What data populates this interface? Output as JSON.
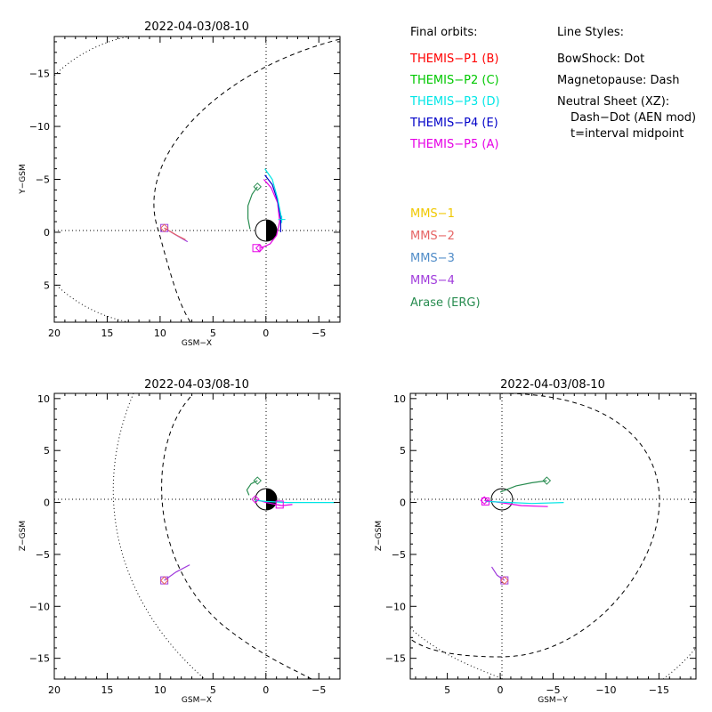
{
  "legend": {
    "final_orbits_title": "Final orbits:",
    "line_styles_title": "Line Styles:",
    "missions": [
      {
        "label": "THEMIS−P1 (B)",
        "color": "#ff0000"
      },
      {
        "label": "THEMIS−P2 (C)",
        "color": "#00c800"
      },
      {
        "label": "THEMIS−P3 (D)",
        "color": "#00e6e6"
      },
      {
        "label": "THEMIS−P4 (E)",
        "color": "#0000c8"
      },
      {
        "label": "THEMIS−P5 (A)",
        "color": "#e600e6"
      }
    ],
    "missions2": [
      {
        "label": "MMS−1",
        "color": "#f0c800"
      },
      {
        "label": "MMS−2",
        "color": "#e66464"
      },
      {
        "label": "MMS−3",
        "color": "#508cc8"
      },
      {
        "label": "MMS−4",
        "color": "#a03cdc"
      },
      {
        "label": "Arase (ERG)",
        "color": "#288c50"
      }
    ],
    "line_styles": [
      "BowShock: Dot",
      "Magnetopause: Dash",
      "Neutral Sheet (XZ):",
      "Dash−Dot (AEN mod)",
      "t=interval midpoint"
    ]
  },
  "chart_data": [
    {
      "id": "xy",
      "type": "line",
      "title": "2022-04-03/08-10",
      "xlabel": "GSM−X",
      "ylabel": "Y−GSM",
      "xlim": [
        20,
        -7
      ],
      "ylim": [
        8.5,
        -18.5
      ],
      "xticks": [
        20,
        15,
        10,
        5,
        0,
        -5
      ],
      "xtick_labels": [
        "20",
        "15",
        "10",
        "5",
        "0",
        "−5"
      ],
      "yticks": [
        5,
        0,
        -5,
        -10,
        -15
      ],
      "ytick_labels": [
        "5",
        "0",
        "−5",
        "−10",
        "−15"
      ],
      "grid": false,
      "series": [
        {
          "color": "#288c50",
          "points": [
            [
              0.8,
              -4.3
            ],
            [
              1.3,
              -3.6
            ],
            [
              1.7,
              -2.5
            ],
            [
              1.7,
              -1.3
            ],
            [
              1.5,
              -0.3
            ]
          ]
        },
        {
          "color": "#e600e6",
          "points": [
            [
              0.2,
              -5.0
            ],
            [
              -0.5,
              -4.2
            ],
            [
              -1.1,
              -2.8
            ],
            [
              -1.3,
              -1.0
            ],
            [
              -1.0,
              0.3
            ],
            [
              -0.4,
              1.1
            ],
            [
              0.5,
              1.5
            ]
          ]
        },
        {
          "color": "#0000c8",
          "points": [
            [
              0.1,
              -5.4
            ],
            [
              -0.6,
              -4.5
            ],
            [
              -1.1,
              -3.0
            ],
            [
              -1.4,
              -1.3
            ],
            [
              -1.4,
              0.0
            ]
          ]
        },
        {
          "color": "#00e6e6",
          "points": [
            [
              0.1,
              -6.0
            ],
            [
              -0.6,
              -5.0
            ],
            [
              -1.1,
              -3.2
            ],
            [
              -1.5,
              -1.2
            ]
          ]
        },
        {
          "color": "#a03cdc",
          "points": [
            [
              9.6,
              -0.4
            ],
            [
              8.6,
              0.2
            ],
            [
              7.4,
              0.9
            ]
          ]
        },
        {
          "color": "#e66464",
          "points": [
            [
              9.6,
              -0.4
            ],
            [
              8.4,
              0.3
            ],
            [
              7.6,
              0.7
            ]
          ]
        }
      ],
      "markers": [
        {
          "x": 0.8,
          "y": -4.3,
          "shape": "diamond",
          "color": "#288c50"
        },
        {
          "x": 0.6,
          "y": 1.5,
          "shape": "diamond",
          "color": "#e600e6"
        },
        {
          "x": 0.9,
          "y": 1.5,
          "shape": "square",
          "color": "#e600e6"
        },
        {
          "x": -1.5,
          "y": -1.2,
          "shape": "plus",
          "color": "#00e6e6"
        },
        {
          "x": 9.6,
          "y": -0.4,
          "shape": "square",
          "color": "#a03cdc"
        },
        {
          "x": 9.6,
          "y": -0.4,
          "shape": "diamond",
          "color": "#e66464"
        }
      ]
    },
    {
      "id": "xz",
      "type": "line",
      "title": "2022-04-03/08-10",
      "xlabel": "GSM−X",
      "ylabel": "Z−GSM",
      "xlim": [
        20,
        -7
      ],
      "ylim": [
        -17,
        10.5
      ],
      "xticks": [
        20,
        15,
        10,
        5,
        0,
        -5
      ],
      "xtick_labels": [
        "20",
        "15",
        "10",
        "5",
        "0",
        "−5"
      ],
      "yticks": [
        10,
        5,
        0,
        -5,
        -10,
        -15
      ],
      "ytick_labels": [
        "10",
        "5",
        "0",
        "−5",
        "−10",
        "−15"
      ],
      "grid": false,
      "series": [
        {
          "color": "#288c50",
          "points": [
            [
              0.8,
              2.1
            ],
            [
              1.4,
              1.8
            ],
            [
              1.8,
              1.2
            ],
            [
              1.6,
              0.7
            ]
          ]
        },
        {
          "color": "#e600e6",
          "points": [
            [
              1.0,
              0.3
            ],
            [
              0.0,
              0.0
            ],
            [
              -1.5,
              -0.3
            ],
            [
              -2.5,
              -0.2
            ]
          ]
        },
        {
          "color": "#00e6e6",
          "points": [
            [
              1.0,
              0.2
            ],
            [
              0,
              0.1
            ],
            [
              -2,
              0.0
            ],
            [
              -6.5,
              0.0
            ]
          ]
        },
        {
          "color": "#a03cdc",
          "points": [
            [
              9.6,
              -7.5
            ],
            [
              8.5,
              -6.7
            ],
            [
              7.2,
              -6.0
            ]
          ]
        }
      ],
      "markers": [
        {
          "x": 0.8,
          "y": 2.1,
          "shape": "diamond",
          "color": "#288c50"
        },
        {
          "x": 1.0,
          "y": 0.3,
          "shape": "diamond",
          "color": "#e600e6"
        },
        {
          "x": -1.3,
          "y": -0.2,
          "shape": "square",
          "color": "#e600e6"
        },
        {
          "x": 9.6,
          "y": -7.5,
          "shape": "square",
          "color": "#a03cdc"
        },
        {
          "x": 9.6,
          "y": -7.5,
          "shape": "diamond",
          "color": "#e66464"
        }
      ]
    },
    {
      "id": "yz",
      "type": "line",
      "title": "2022-04-03/08-10",
      "xlabel": "GSM−Y",
      "ylabel": "Z−GSM",
      "xlim": [
        8.5,
        -18.5
      ],
      "ylim": [
        -17,
        10.5
      ],
      "xticks": [
        5,
        0,
        -5,
        -10,
        -15
      ],
      "xtick_labels": [
        "5",
        "0",
        "−5",
        "−10",
        "−15"
      ],
      "yticks": [
        10,
        5,
        0,
        -5,
        -10,
        -15
      ],
      "ytick_labels": [
        "10",
        "5",
        "0",
        "−5",
        "−10",
        "−15"
      ],
      "grid": false,
      "series": [
        {
          "color": "#288c50",
          "points": [
            [
              0.0,
              1.0
            ],
            [
              -1.5,
              1.6
            ],
            [
              -3,
              1.9
            ],
            [
              -4.4,
              2.1
            ]
          ]
        },
        {
          "color": "#e600e6",
          "points": [
            [
              1.5,
              0.2
            ],
            [
              0,
              0.0
            ],
            [
              -2,
              -0.3
            ],
            [
              -4.5,
              -0.4
            ]
          ]
        },
        {
          "color": "#00e6e6",
          "points": [
            [
              1.4,
              0.1
            ],
            [
              -1,
              0.0
            ],
            [
              -3,
              -0.1
            ],
            [
              -6,
              0.0
            ]
          ]
        },
        {
          "color": "#a03cdc",
          "points": [
            [
              0.8,
              -6.2
            ],
            [
              0.3,
              -7.0
            ],
            [
              -0.4,
              -7.5
            ]
          ]
        }
      ],
      "markers": [
        {
          "x": -4.4,
          "y": 2.1,
          "shape": "diamond",
          "color": "#288c50"
        },
        {
          "x": 1.5,
          "y": 0.2,
          "shape": "diamond",
          "color": "#e600e6"
        },
        {
          "x": 1.4,
          "y": 0.1,
          "shape": "square",
          "color": "#e600e6"
        },
        {
          "x": -0.4,
          "y": -7.5,
          "shape": "square",
          "color": "#a03cdc"
        },
        {
          "x": -0.4,
          "y": -7.5,
          "shape": "diamond",
          "color": "#e66464"
        }
      ]
    }
  ]
}
